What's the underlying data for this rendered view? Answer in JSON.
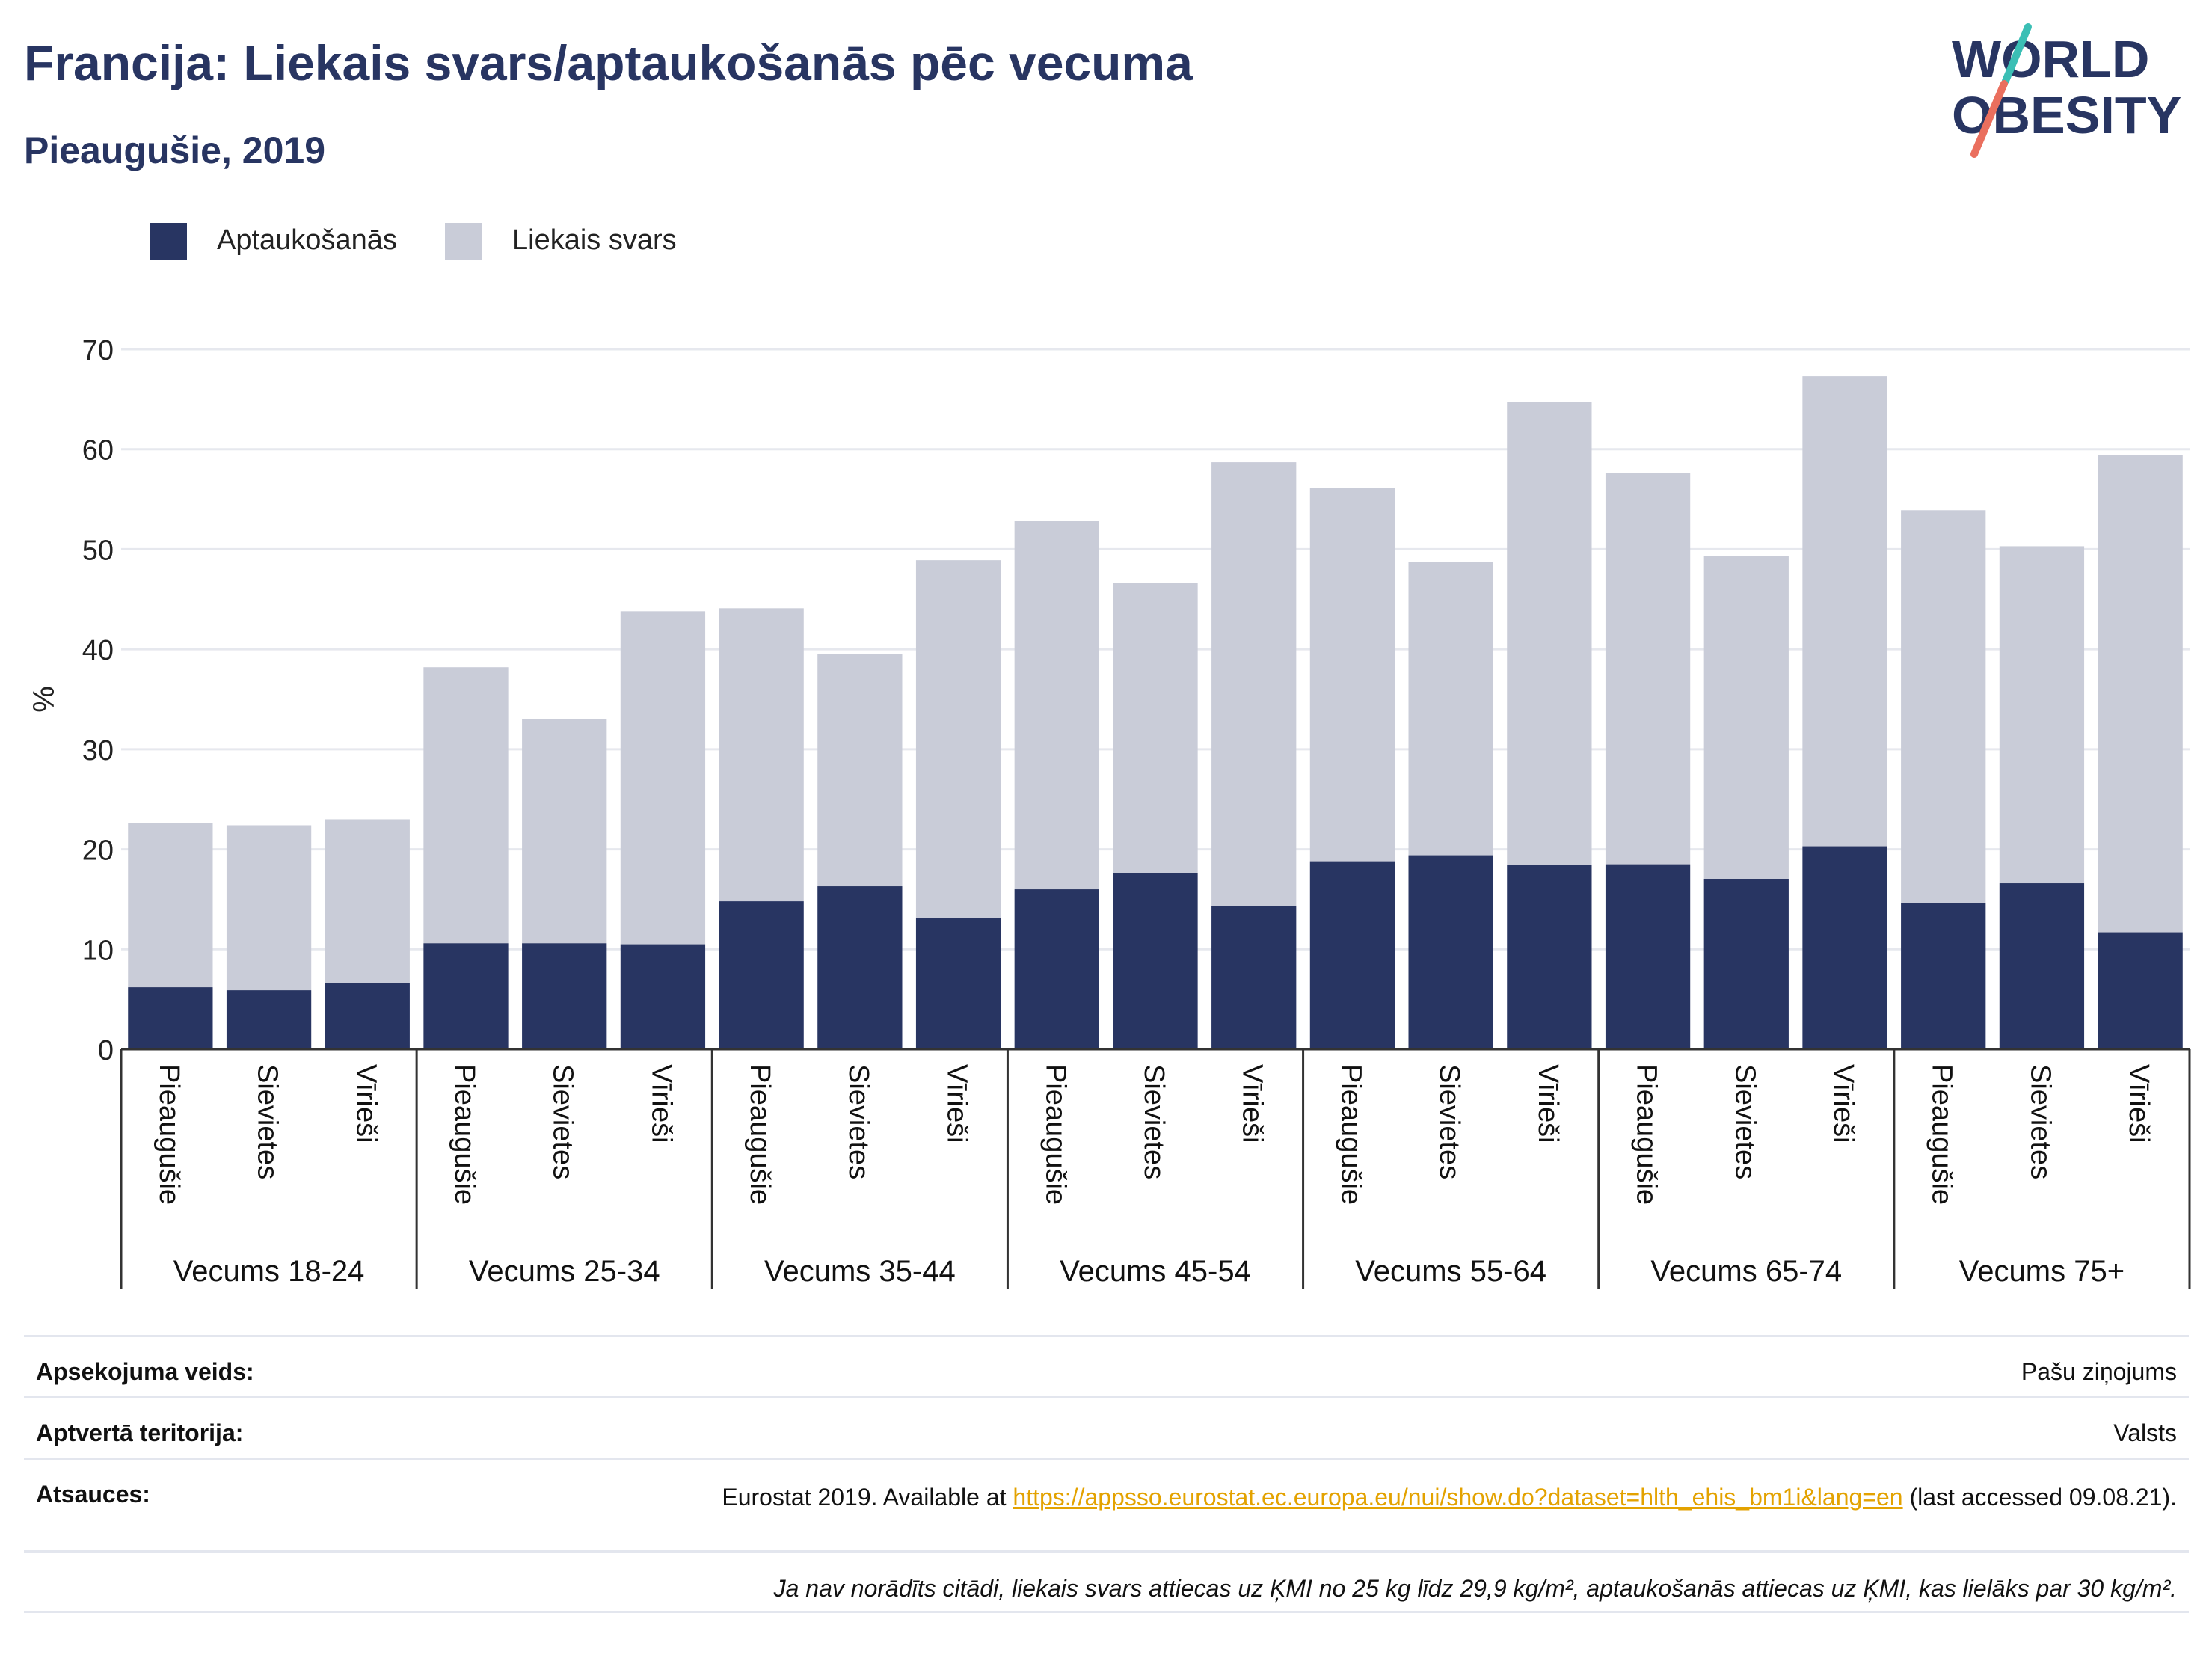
{
  "header": {
    "title": "Francija: Liekais svars/aptaukošanās pēc vecuma",
    "subtitle": "Pieaugušie, 2019"
  },
  "logo": {
    "line1": "WORLD",
    "line2": "OBESITY"
  },
  "colors": {
    "obesity": "#283562",
    "overweight": "#c9ccd8",
    "logo_teal": "#3bbfb5",
    "logo_salmon": "#ea6f5e",
    "link": "#e3a200"
  },
  "chart_data": {
    "type": "bar",
    "stacked": true,
    "ylabel": "%",
    "ylim": [
      0,
      70
    ],
    "yticks": [
      0,
      10,
      20,
      30,
      40,
      50,
      60,
      70
    ],
    "grid": true,
    "legend_position": "top-left",
    "series": [
      {
        "name": "Aptaukošanās",
        "color": "#283562",
        "values": [
          6.2,
          5.9,
          6.6,
          10.6,
          10.6,
          10.5,
          14.8,
          16.3,
          13.1,
          16.0,
          17.6,
          14.3,
          18.8,
          19.4,
          18.4,
          18.5,
          17.0,
          20.3,
          14.6,
          16.6,
          11.7
        ]
      },
      {
        "name": "Liekais svars",
        "color": "#c9ccd8",
        "values": [
          16.4,
          16.5,
          16.4,
          27.6,
          22.4,
          33.3,
          29.3,
          23.2,
          35.8,
          36.8,
          29.0,
          44.4,
          37.3,
          29.3,
          46.3,
          39.1,
          32.3,
          47.0,
          39.3,
          33.7,
          47.7
        ]
      }
    ],
    "groups": [
      {
        "label": "Vecums 18-24",
        "categories": [
          "Pieaugušie",
          "Sievietes",
          "Vīrieši"
        ]
      },
      {
        "label": "Vecums 25-34",
        "categories": [
          "Pieaugušie",
          "Sievietes",
          "Vīrieši"
        ]
      },
      {
        "label": "Vecums 35-44",
        "categories": [
          "Pieaugušie",
          "Sievietes",
          "Vīrieši"
        ]
      },
      {
        "label": "Vecums 45-54",
        "categories": [
          "Pieaugušie",
          "Sievietes",
          "Vīrieši"
        ]
      },
      {
        "label": "Vecums 55-64",
        "categories": [
          "Pieaugušie",
          "Sievietes",
          "Vīrieši"
        ]
      },
      {
        "label": "Vecums 65-74",
        "categories": [
          "Pieaugušie",
          "Sievietes",
          "Vīrieši"
        ]
      },
      {
        "label": "Vecums 75+",
        "categories": [
          "Pieaugušie",
          "Sievietes",
          "Vīrieši"
        ]
      }
    ]
  },
  "info": {
    "survey_type_label": "Apsekojuma veids:",
    "survey_type_value": "Pašu ziņojums",
    "coverage_label": "Aptvertā teritorija:",
    "coverage_value": "Valsts",
    "sources_label": "Atsauces:",
    "sources_prefix": "Eurostat 2019. Available at ",
    "sources_link": "https://appsso.eurostat.ec.europa.eu/nui/show.do?dataset=hlth_ehis_bm1i&lang=en",
    "sources_suffix": " (last accessed 09.08.21).",
    "note": "Ja nav norādīts citādi, liekais svars attiecas uz ĶMI no 25 kg līdz 29,9 kg/m², aptaukošanās attiecas uz ĶMI, kas lielāks par 30 kg/m²."
  }
}
